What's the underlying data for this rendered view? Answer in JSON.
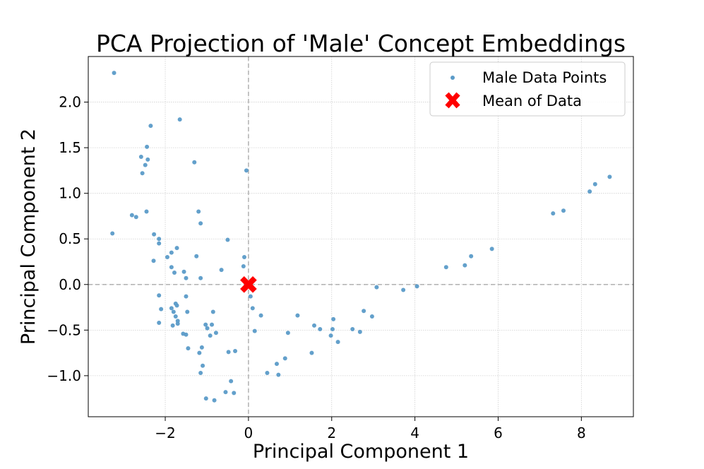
{
  "chart_data": {
    "type": "scatter",
    "title": "PCA Projection of 'Male' Concept Embeddings",
    "xlabel": "Principal Component 1",
    "ylabel": "Principal Component 2",
    "xlim": [
      -3.85,
      9.25
    ],
    "ylim": [
      -1.45,
      2.5
    ],
    "x_ticks": [
      -2,
      0,
      2,
      4,
      6,
      8
    ],
    "x_tick_labels": [
      "−2",
      "0",
      "2",
      "4",
      "6",
      "8"
    ],
    "y_ticks": [
      -1.0,
      -0.5,
      0.0,
      0.5,
      1.0,
      1.5,
      2.0
    ],
    "y_tick_labels": [
      "−1.0",
      "−0.5",
      "0.0",
      "0.5",
      "1.0",
      "1.5",
      "2.0"
    ],
    "grid": true,
    "legend_position": "top-right",
    "reference_lines": {
      "x": 0,
      "y": 0
    },
    "series": [
      {
        "name": "Male Data Points",
        "color": "#5b9bc8",
        "points": [
          [
            -3.23,
            2.32
          ],
          [
            -3.27,
            0.56
          ],
          [
            -2.8,
            0.76
          ],
          [
            -2.7,
            0.74
          ],
          [
            -2.58,
            1.4
          ],
          [
            -2.55,
            1.22
          ],
          [
            -2.48,
            1.31
          ],
          [
            -2.44,
            1.51
          ],
          [
            -2.42,
            1.37
          ],
          [
            -2.35,
            1.74
          ],
          [
            -2.45,
            0.8
          ],
          [
            -2.27,
            0.55
          ],
          [
            -2.15,
            0.5
          ],
          [
            -2.15,
            0.45
          ],
          [
            -2.28,
            0.26
          ],
          [
            -1.95,
            0.3
          ],
          [
            -1.85,
            0.35
          ],
          [
            -1.72,
            0.4
          ],
          [
            -1.85,
            0.19
          ],
          [
            -1.78,
            0.13
          ],
          [
            -1.55,
            0.14
          ],
          [
            -1.5,
            0.07
          ],
          [
            -1.65,
            1.81
          ],
          [
            -1.3,
            1.34
          ],
          [
            -1.2,
            0.8
          ],
          [
            -1.15,
            0.67
          ],
          [
            -1.25,
            0.31
          ],
          [
            -1.15,
            0.07
          ],
          [
            -0.65,
            0.16
          ],
          [
            -0.5,
            0.49
          ],
          [
            -0.1,
            0.3
          ],
          [
            -0.12,
            0.2
          ],
          [
            -0.05,
            1.25
          ],
          [
            -2.15,
            -0.12
          ],
          [
            -2.1,
            -0.27
          ],
          [
            -2.15,
            -0.42
          ],
          [
            -1.85,
            -0.26
          ],
          [
            -1.8,
            -0.3
          ],
          [
            -1.75,
            -0.21
          ],
          [
            -1.72,
            -0.23
          ],
          [
            -1.75,
            -0.35
          ],
          [
            -1.7,
            -0.4
          ],
          [
            -1.7,
            -0.43
          ],
          [
            -1.82,
            -0.45
          ],
          [
            -1.5,
            -0.13
          ],
          [
            -1.47,
            -0.3
          ],
          [
            -1.57,
            -0.54
          ],
          [
            -1.5,
            -0.55
          ],
          [
            -1.45,
            -0.7
          ],
          [
            -1.18,
            -0.75
          ],
          [
            -1.12,
            -0.69
          ],
          [
            -1.1,
            -0.89
          ],
          [
            -1.15,
            -0.97
          ],
          [
            -1.03,
            -0.44
          ],
          [
            -0.99,
            -0.48
          ],
          [
            -0.88,
            -0.44
          ],
          [
            -0.92,
            -0.56
          ],
          [
            -0.85,
            -0.3
          ],
          [
            -0.78,
            -0.53
          ],
          [
            -1.02,
            -1.25
          ],
          [
            -0.82,
            -1.27
          ],
          [
            -0.55,
            -1.18
          ],
          [
            -0.42,
            -1.06
          ],
          [
            -0.35,
            -1.19
          ],
          [
            -0.48,
            -0.74
          ],
          [
            -0.32,
            -0.73
          ],
          [
            0.05,
            -0.13
          ],
          [
            0.1,
            -0.26
          ],
          [
            0.15,
            -0.51
          ],
          [
            0.3,
            -0.34
          ],
          [
            0.45,
            -0.97
          ],
          [
            0.68,
            -0.87
          ],
          [
            0.72,
            -0.99
          ],
          [
            0.88,
            -0.81
          ],
          [
            0.95,
            -0.53
          ],
          [
            1.18,
            -0.34
          ],
          [
            1.52,
            -0.75
          ],
          [
            1.58,
            -0.45
          ],
          [
            1.72,
            -0.49
          ],
          [
            1.98,
            -0.56
          ],
          [
            2.02,
            -0.49
          ],
          [
            2.04,
            -0.38
          ],
          [
            2.15,
            -0.63
          ],
          [
            2.5,
            -0.49
          ],
          [
            2.68,
            -0.52
          ],
          [
            2.77,
            -0.29
          ],
          [
            2.97,
            -0.35
          ],
          [
            3.08,
            -0.03
          ],
          [
            3.72,
            -0.06
          ],
          [
            4.05,
            -0.02
          ],
          [
            4.75,
            0.19
          ],
          [
            5.2,
            0.21
          ],
          [
            5.35,
            0.31
          ],
          [
            5.85,
            0.39
          ],
          [
            7.32,
            0.78
          ],
          [
            7.57,
            0.81
          ],
          [
            8.2,
            1.02
          ],
          [
            8.33,
            1.1
          ],
          [
            8.68,
            1.18
          ]
        ]
      },
      {
        "name": "Mean of Data",
        "color": "#ff0000",
        "marker": "X",
        "points": [
          [
            0.0,
            0.0
          ]
        ]
      }
    ]
  }
}
